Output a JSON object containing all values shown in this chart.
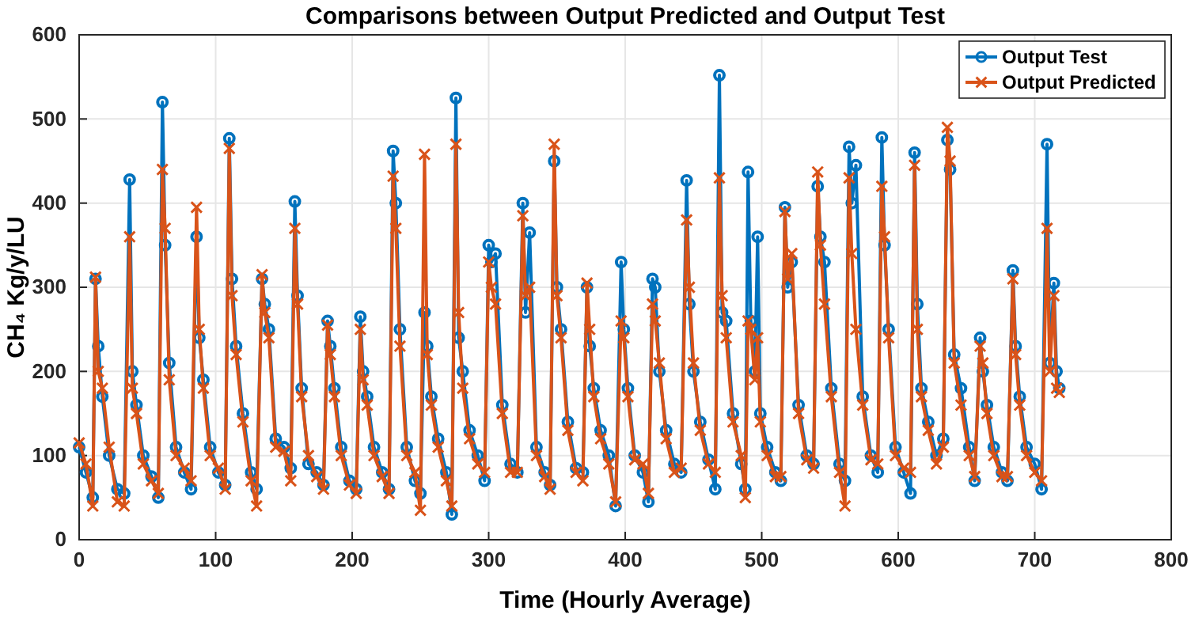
{
  "chart_data": {
    "type": "line",
    "title": "Comparisons between Output Predicted and Output Test",
    "xlabel": "Time (Hourly Average)",
    "ylabel": "CH₄ Kg/y/LU",
    "x": [
      0,
      5,
      10,
      12,
      14,
      17,
      22,
      28,
      33,
      37,
      39,
      42,
      47,
      53,
      58,
      61,
      63,
      66,
      71,
      77,
      82,
      86,
      88,
      91,
      96,
      102,
      107,
      110,
      112,
      115,
      120,
      126,
      130,
      134,
      136,
      139,
      144,
      150,
      155,
      158,
      160,
      163,
      168,
      174,
      179,
      182,
      184,
      187,
      192,
      198,
      203,
      206,
      208,
      211,
      216,
      222,
      227,
      230,
      232,
      235,
      240,
      246,
      250,
      253,
      255,
      258,
      263,
      269,
      273,
      276,
      278,
      281,
      286,
      292,
      297,
      300,
      302,
      305,
      310,
      316,
      321,
      325,
      327,
      330,
      335,
      341,
      345,
      348,
      350,
      353,
      358,
      364,
      369,
      372,
      374,
      377,
      382,
      388,
      393,
      397,
      399,
      402,
      407,
      413,
      417,
      420,
      422,
      425,
      430,
      436,
      441,
      445,
      447,
      450,
      455,
      461,
      466,
      469,
      471,
      474,
      479,
      485,
      488,
      490,
      492,
      495,
      497,
      499,
      504,
      510,
      514,
      517,
      519,
      522,
      527,
      533,
      538,
      541,
      543,
      546,
      551,
      557,
      561,
      564,
      566,
      569,
      574,
      580,
      585,
      588,
      590,
      593,
      598,
      604,
      609,
      612,
      614,
      617,
      622,
      628,
      633,
      636,
      638,
      641,
      646,
      652,
      656,
      660,
      662,
      665,
      670,
      676,
      680,
      684,
      686,
      689,
      694,
      700,
      705,
      709,
      711,
      714,
      716,
      718
    ],
    "series": [
      {
        "name": "Output Test",
        "color": "#0072bd",
        "marker": "circle",
        "values": [
          110,
          80,
          50,
          310,
          230,
          170,
          100,
          60,
          55,
          428,
          200,
          160,
          100,
          75,
          50,
          520,
          350,
          210,
          110,
          80,
          60,
          360,
          240,
          190,
          110,
          80,
          65,
          477,
          310,
          230,
          150,
          80,
          60,
          310,
          280,
          250,
          120,
          110,
          85,
          402,
          290,
          180,
          90,
          80,
          65,
          260,
          230,
          180,
          110,
          70,
          60,
          265,
          200,
          170,
          110,
          80,
          60,
          462,
          400,
          250,
          110,
          70,
          55,
          270,
          230,
          170,
          120,
          80,
          30,
          525,
          240,
          200,
          130,
          100,
          70,
          350,
          330,
          340,
          160,
          90,
          80,
          400,
          270,
          365,
          110,
          80,
          65,
          450,
          300,
          250,
          140,
          85,
          80,
          300,
          230,
          180,
          130,
          100,
          40,
          330,
          250,
          180,
          100,
          80,
          45,
          310,
          300,
          200,
          130,
          90,
          80,
          427,
          280,
          200,
          140,
          95,
          60,
          552,
          270,
          260,
          150,
          90,
          60,
          437,
          260,
          200,
          360,
          150,
          110,
          80,
          70,
          395,
          300,
          330,
          160,
          100,
          90,
          420,
          360,
          330,
          180,
          90,
          70,
          467,
          400,
          445,
          170,
          100,
          80,
          478,
          350,
          250,
          110,
          80,
          55,
          460,
          280,
          180,
          140,
          100,
          120,
          475,
          440,
          220,
          180,
          110,
          70,
          240,
          200,
          160,
          110,
          80,
          70,
          320,
          230,
          170,
          110,
          90,
          60,
          470,
          210,
          305,
          200,
          180
        ]
      },
      {
        "name": "Output Predicted",
        "color": "#d95319",
        "marker": "cross",
        "values": [
          115,
          90,
          40,
          312,
          200,
          180,
          110,
          45,
          40,
          360,
          180,
          150,
          90,
          70,
          55,
          440,
          370,
          190,
          100,
          85,
          70,
          395,
          250,
          180,
          100,
          85,
          60,
          465,
          290,
          220,
          140,
          70,
          40,
          315,
          270,
          240,
          110,
          105,
          70,
          370,
          280,
          170,
          100,
          75,
          60,
          255,
          220,
          170,
          100,
          65,
          55,
          250,
          190,
          160,
          100,
          75,
          55,
          432,
          370,
          230,
          100,
          80,
          35,
          458,
          220,
          160,
          110,
          70,
          40,
          470,
          270,
          180,
          120,
          90,
          80,
          330,
          300,
          280,
          150,
          80,
          80,
          385,
          290,
          300,
          100,
          75,
          60,
          470,
          290,
          240,
          130,
          80,
          70,
          305,
          250,
          170,
          120,
          90,
          45,
          260,
          240,
          170,
          95,
          90,
          55,
          280,
          260,
          210,
          120,
          80,
          85,
          380,
          300,
          210,
          130,
          90,
          80,
          430,
          290,
          240,
          140,
          100,
          50,
          260,
          250,
          190,
          240,
          140,
          100,
          75,
          75,
          390,
          310,
          340,
          150,
          95,
          85,
          437,
          350,
          280,
          170,
          80,
          40,
          430,
          340,
          250,
          160,
          95,
          90,
          420,
          360,
          240,
          100,
          85,
          80,
          445,
          250,
          170,
          130,
          90,
          110,
          490,
          450,
          210,
          160,
          100,
          75,
          230,
          210,
          150,
          100,
          75,
          75,
          310,
          220,
          160,
          100,
          80,
          70,
          370,
          200,
          290,
          180,
          175
        ]
      }
    ],
    "xlim": [
      0,
      800
    ],
    "xticks": [
      0,
      100,
      200,
      300,
      400,
      500,
      600,
      700,
      800
    ],
    "ylim": [
      0,
      600
    ],
    "yticks": [
      0,
      100,
      200,
      300,
      400,
      500,
      600
    ],
    "grid": true,
    "legend": "top right",
    "line_style": "solid"
  }
}
